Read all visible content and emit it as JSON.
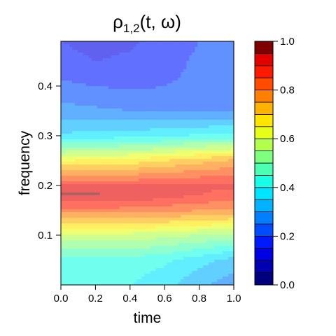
{
  "chart_data": {
    "type": "heatmap",
    "title": "ρ1,2(t, ω)",
    "title_main": "ρ",
    "title_sub": "1,2",
    "title_rest": "(t, ω)",
    "xlabel": "time",
    "ylabel": "frequency",
    "xlim": [
      0.0,
      1.0
    ],
    "ylim": [
      0.0,
      0.49
    ],
    "x_ticks": [
      "0.0",
      "0.2",
      "0.4",
      "0.6",
      "0.8",
      "1.0"
    ],
    "y_ticks": [
      "0.1",
      "0.2",
      "0.3",
      "0.4"
    ],
    "x_tick_values": [
      0.0,
      0.2,
      0.4,
      0.6,
      0.8,
      1.0
    ],
    "y_tick_values": [
      0.1,
      0.2,
      0.3,
      0.4
    ],
    "colorbar": {
      "ticks": [
        "0.0",
        "0.2",
        "0.4",
        "0.6",
        "0.8",
        "1.0"
      ],
      "tick_values": [
        0.0,
        0.2,
        0.4,
        0.6,
        0.8,
        1.0
      ],
      "levels": 20,
      "colors": [
        "#00007F",
        "#0000B2",
        "#0000E5",
        "#0019FF",
        "#004CFF",
        "#007FFF",
        "#00B2FF",
        "#00E5FF",
        "#19FFE5",
        "#4CFFB2",
        "#7FFF7F",
        "#B2FF4C",
        "#E5FF19",
        "#FFE500",
        "#FFB200",
        "#FF7F00",
        "#FF4C00",
        "#FF1900",
        "#E50000",
        "#7F0000"
      ]
    },
    "grid": false,
    "legend": "colorbar-right",
    "surface": {
      "x": [
        0.0,
        0.2,
        0.4,
        0.6,
        0.8,
        1.0
      ],
      "y": [
        0.0,
        0.05,
        0.1,
        0.15,
        0.18,
        0.2,
        0.25,
        0.3,
        0.35,
        0.4,
        0.45,
        0.49
      ],
      "z": [
        [
          0.4,
          0.4,
          0.4,
          0.37,
          0.31,
          0.27
        ],
        [
          0.43,
          0.43,
          0.43,
          0.41,
          0.37,
          0.33
        ],
        [
          0.58,
          0.58,
          0.58,
          0.57,
          0.55,
          0.53
        ],
        [
          0.83,
          0.83,
          0.83,
          0.82,
          0.8,
          0.79
        ],
        [
          0.96,
          0.96,
          0.95,
          0.92,
          0.9,
          0.88
        ],
        [
          0.9,
          0.9,
          0.9,
          0.9,
          0.91,
          0.91
        ],
        [
          0.65,
          0.66,
          0.67,
          0.7,
          0.73,
          0.76
        ],
        [
          0.36,
          0.37,
          0.38,
          0.39,
          0.41,
          0.42
        ],
        [
          0.27,
          0.26,
          0.25,
          0.24,
          0.24,
          0.24
        ],
        [
          0.21,
          0.2,
          0.19,
          0.2,
          0.21,
          0.22
        ],
        [
          0.17,
          0.15,
          0.16,
          0.18,
          0.21,
          0.23
        ],
        [
          0.15,
          0.13,
          0.14,
          0.17,
          0.2,
          0.23
        ]
      ]
    }
  }
}
